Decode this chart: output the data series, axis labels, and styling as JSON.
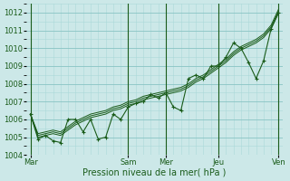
{
  "xlabel": "Pression niveau de la mer( hPa )",
  "background_color": "#cce8e8",
  "grid_major_color": "#88c4c4",
  "grid_minor_color": "#aad8d8",
  "line_color": "#1a5c1a",
  "ylim": [
    1004,
    1012.5
  ],
  "yticks": [
    1004,
    1005,
    1006,
    1007,
    1008,
    1009,
    1010,
    1011,
    1012
  ],
  "xtick_labels": [
    "Mar",
    "",
    "Sam",
    "Mer",
    "",
    "Jeu",
    "",
    "Ven"
  ],
  "xtick_positions": [
    0,
    8,
    13,
    18,
    21,
    25,
    29,
    33
  ],
  "vline_positions": [
    0,
    13,
    18,
    25,
    33
  ],
  "n_points": 34,
  "series_with_markers": [
    [
      1006.3,
      1004.9,
      1005.1,
      1004.8,
      1004.7,
      1006.0,
      1006.0,
      1005.3,
      1006.0,
      1004.9,
      1005.0,
      1006.3,
      1006.0,
      1006.7,
      1006.9,
      1007.0,
      1007.4,
      1007.2,
      1007.5,
      1006.7,
      1006.5,
      1008.3,
      1008.5,
      1008.3,
      1009.0,
      1009.0,
      1009.5,
      1010.3,
      1010.0,
      1009.2,
      1008.3,
      1009.3,
      1011.1,
      1012.0
    ]
  ],
  "series_smooth": [
    [
      1006.3,
      1005.1,
      1005.2,
      1005.3,
      1005.2,
      1005.5,
      1005.8,
      1006.0,
      1006.2,
      1006.3,
      1006.4,
      1006.6,
      1006.7,
      1006.9,
      1007.0,
      1007.2,
      1007.3,
      1007.4,
      1007.5,
      1007.6,
      1007.7,
      1007.9,
      1008.2,
      1008.4,
      1008.7,
      1009.0,
      1009.3,
      1009.7,
      1010.0,
      1010.2,
      1010.4,
      1010.7,
      1011.2,
      1012.1
    ],
    [
      1006.3,
      1005.0,
      1005.1,
      1005.2,
      1005.1,
      1005.4,
      1005.7,
      1005.9,
      1006.1,
      1006.2,
      1006.3,
      1006.5,
      1006.6,
      1006.8,
      1006.9,
      1007.1,
      1007.2,
      1007.3,
      1007.4,
      1007.5,
      1007.6,
      1007.8,
      1008.1,
      1008.3,
      1008.6,
      1008.9,
      1009.2,
      1009.6,
      1009.9,
      1010.1,
      1010.3,
      1010.6,
      1011.1,
      1012.0
    ],
    [
      1006.3,
      1005.2,
      1005.3,
      1005.4,
      1005.3,
      1005.6,
      1005.9,
      1006.1,
      1006.3,
      1006.4,
      1006.5,
      1006.7,
      1006.8,
      1007.0,
      1007.1,
      1007.3,
      1007.4,
      1007.5,
      1007.6,
      1007.7,
      1007.8,
      1008.0,
      1008.3,
      1008.5,
      1008.8,
      1009.1,
      1009.4,
      1009.8,
      1010.1,
      1010.3,
      1010.5,
      1010.8,
      1011.3,
      1012.2
    ]
  ]
}
